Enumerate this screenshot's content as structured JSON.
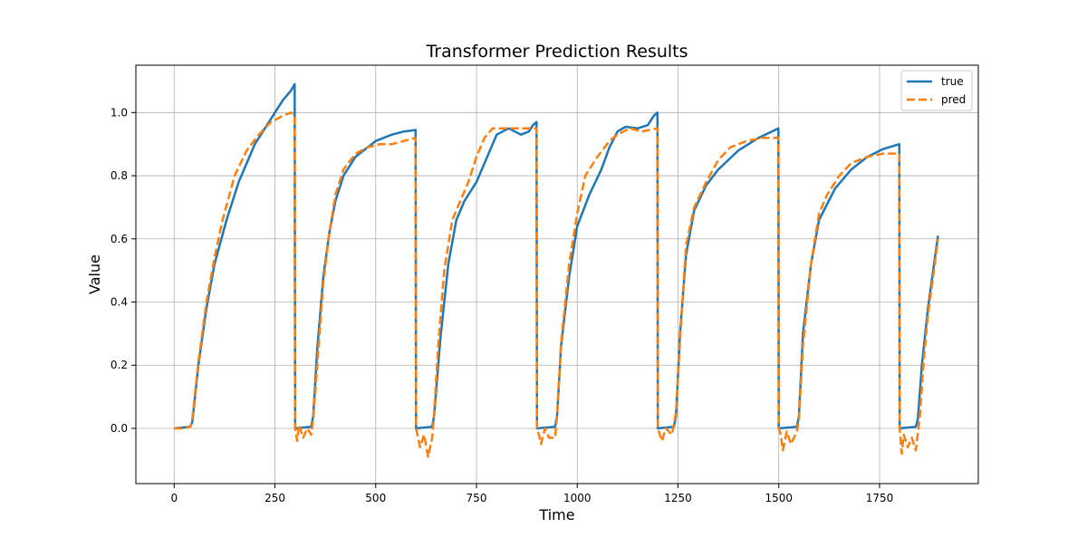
{
  "chart_data": {
    "type": "line",
    "title": "Transformer Prediction Results",
    "xlabel": "Time",
    "ylabel": "Value",
    "xlim": [
      -95,
      1995
    ],
    "ylim": [
      -0.175,
      1.15
    ],
    "xticks": [
      0,
      250,
      500,
      750,
      1000,
      1250,
      1500,
      1750
    ],
    "yticks": [
      0.0,
      0.2,
      0.4,
      0.6,
      0.8,
      1.0
    ],
    "xtick_labels": [
      "0",
      "250",
      "500",
      "750",
      "1000",
      "1250",
      "1500",
      "1750"
    ],
    "ytick_labels": [
      "0.0",
      "0.2",
      "0.4",
      "0.6",
      "0.8",
      "1.0"
    ],
    "grid": true,
    "legend_position": "top-right",
    "series": [
      {
        "name": "true",
        "color": "#1f77b4",
        "style": "solid",
        "x": [
          0,
          40,
          45,
          60,
          80,
          100,
          130,
          160,
          200,
          240,
          270,
          290,
          299,
          300,
          340,
          345,
          355,
          370,
          385,
          400,
          420,
          450,
          500,
          540,
          570,
          599,
          600,
          640,
          645,
          660,
          680,
          700,
          720,
          750,
          780,
          800,
          830,
          860,
          880,
          890,
          899,
          900,
          945,
          950,
          960,
          980,
          1000,
          1030,
          1060,
          1080,
          1100,
          1120,
          1150,
          1175,
          1190,
          1199,
          1200,
          1240,
          1245,
          1255,
          1270,
          1290,
          1320,
          1350,
          1400,
          1450,
          1499,
          1500,
          1545,
          1550,
          1560,
          1580,
          1600,
          1640,
          1680,
          1720,
          1760,
          1799,
          1800,
          1840,
          1845,
          1855,
          1870,
          1885,
          1895
        ],
        "y": [
          0.0,
          0.005,
          0.02,
          0.2,
          0.38,
          0.52,
          0.66,
          0.78,
          0.9,
          0.98,
          1.04,
          1.07,
          1.09,
          0.0,
          0.005,
          0.04,
          0.25,
          0.48,
          0.62,
          0.72,
          0.8,
          0.86,
          0.91,
          0.93,
          0.94,
          0.945,
          0.0,
          0.005,
          0.04,
          0.28,
          0.52,
          0.66,
          0.72,
          0.78,
          0.87,
          0.93,
          0.95,
          0.93,
          0.94,
          0.96,
          0.97,
          0.0,
          0.005,
          0.04,
          0.26,
          0.48,
          0.64,
          0.74,
          0.82,
          0.89,
          0.94,
          0.955,
          0.95,
          0.96,
          0.99,
          1.0,
          0.0,
          0.005,
          0.04,
          0.3,
          0.55,
          0.69,
          0.77,
          0.82,
          0.88,
          0.92,
          0.95,
          0.0,
          0.005,
          0.04,
          0.3,
          0.52,
          0.66,
          0.76,
          0.82,
          0.86,
          0.885,
          0.9,
          0.0,
          0.005,
          0.03,
          0.2,
          0.38,
          0.52,
          0.61
        ]
      },
      {
        "name": "pred",
        "color": "#ff7f0e",
        "style": "dashed",
        "x": [
          0,
          20,
          40,
          45,
          60,
          80,
          100,
          120,
          150,
          180,
          210,
          240,
          270,
          290,
          299,
          300,
          305,
          310,
          320,
          330,
          340,
          345,
          355,
          370,
          385,
          400,
          420,
          450,
          480,
          510,
          540,
          570,
          599,
          600,
          605,
          610,
          620,
          630,
          640,
          645,
          655,
          670,
          690,
          710,
          730,
          750,
          770,
          790,
          810,
          840,
          870,
          899,
          900,
          905,
          910,
          920,
          930,
          945,
          950,
          960,
          980,
          1000,
          1020,
          1050,
          1080,
          1100,
          1130,
          1160,
          1199,
          1200,
          1205,
          1210,
          1220,
          1235,
          1245,
          1255,
          1270,
          1290,
          1320,
          1350,
          1380,
          1420,
          1460,
          1499,
          1500,
          1505,
          1510,
          1520,
          1530,
          1545,
          1550,
          1560,
          1580,
          1600,
          1620,
          1650,
          1680,
          1720,
          1760,
          1799,
          1800,
          1805,
          1810,
          1820,
          1830,
          1840,
          1850,
          1860,
          1870,
          1885,
          1895
        ],
        "y": [
          0.0,
          0.0,
          0.005,
          0.03,
          0.21,
          0.4,
          0.54,
          0.66,
          0.8,
          0.88,
          0.93,
          0.97,
          0.99,
          1.0,
          0.99,
          0.0,
          -0.04,
          0.01,
          -0.03,
          0.0,
          -0.02,
          0.03,
          0.2,
          0.46,
          0.62,
          0.74,
          0.82,
          0.87,
          0.89,
          0.9,
          0.9,
          0.91,
          0.92,
          0.0,
          -0.03,
          -0.06,
          -0.02,
          -0.09,
          -0.03,
          0.05,
          0.26,
          0.5,
          0.66,
          0.72,
          0.78,
          0.86,
          0.92,
          0.95,
          0.95,
          0.95,
          0.95,
          0.95,
          0.0,
          -0.02,
          -0.05,
          0.0,
          -0.03,
          -0.03,
          0.04,
          0.27,
          0.52,
          0.68,
          0.8,
          0.86,
          0.91,
          0.93,
          0.95,
          0.94,
          0.95,
          0.0,
          -0.02,
          -0.04,
          0.0,
          -0.02,
          0.05,
          0.28,
          0.58,
          0.7,
          0.78,
          0.85,
          0.89,
          0.91,
          0.92,
          0.92,
          0.0,
          -0.02,
          -0.07,
          -0.01,
          -0.05,
          -0.01,
          0.03,
          0.26,
          0.52,
          0.68,
          0.74,
          0.8,
          0.84,
          0.86,
          0.87,
          0.87,
          0.0,
          -0.08,
          -0.02,
          -0.06,
          -0.03,
          -0.07,
          0.04,
          0.22,
          0.36,
          0.5,
          0.6
        ]
      }
    ]
  }
}
